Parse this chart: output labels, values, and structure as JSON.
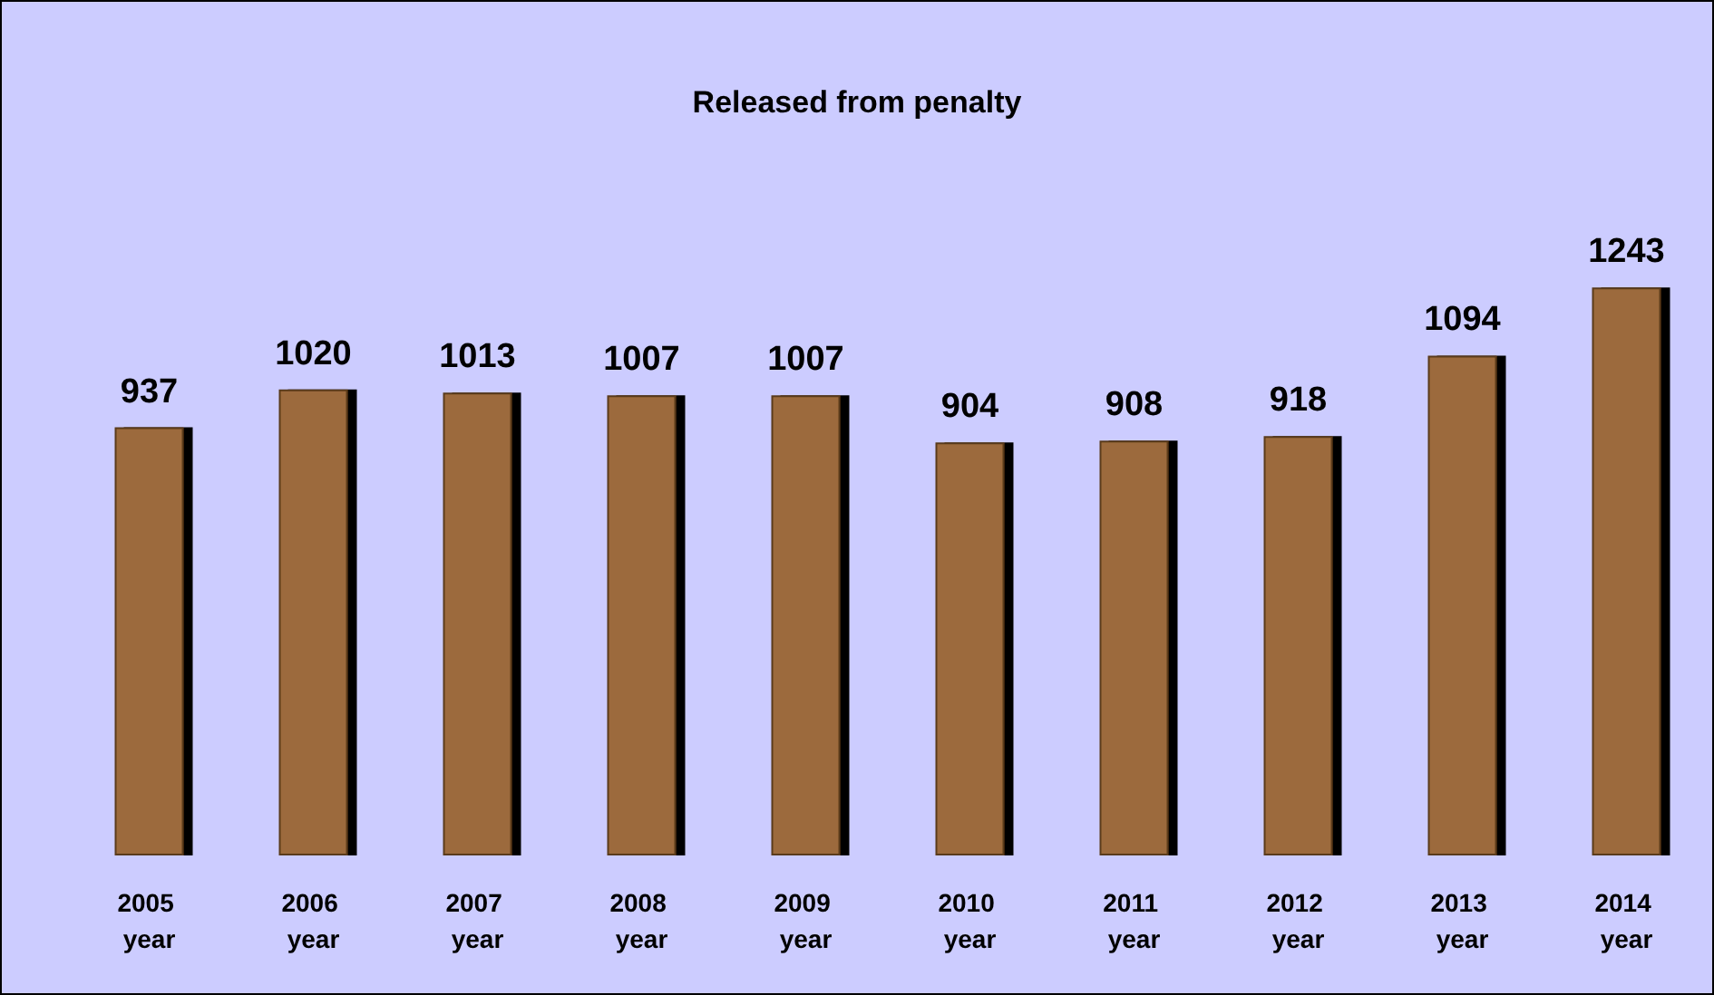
{
  "chart_data": {
    "type": "bar",
    "title": "Released from penalty",
    "categories": [
      "2005 year",
      "2006 year",
      "2007 year",
      "2008 year",
      "2009 year",
      "2010 year",
      "2011 year",
      "2012 year",
      "2013 year",
      "2014 year"
    ],
    "values": [
      937,
      1020,
      1013,
      1007,
      1007,
      904,
      908,
      918,
      1094,
      1243
    ],
    "color": "#9c6b3c",
    "data_labels": true
  }
}
